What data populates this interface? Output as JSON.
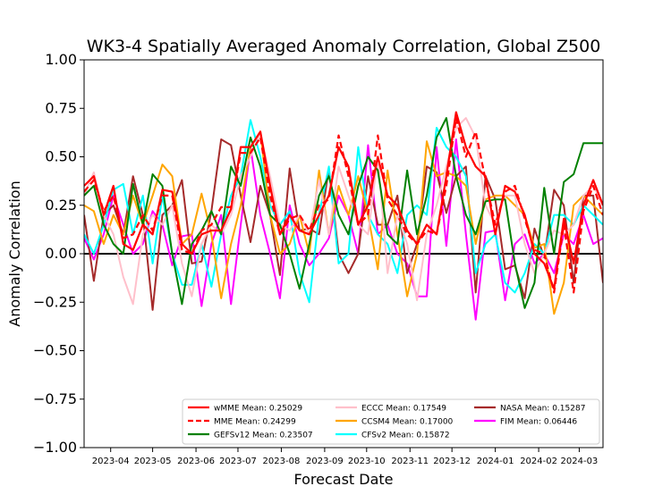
{
  "chart_data": {
    "type": "line",
    "title": "WK3-4 Spatially Averaged Anomaly Correlation, Global Z500",
    "xlabel": "Forecast Date",
    "ylabel": "Anomaly Correlation",
    "ylim": [
      -1.0,
      1.0
    ],
    "xlim": [
      "2023-03-13",
      "2024-03-18"
    ],
    "grid": false,
    "legend_position": "lower-center",
    "zero_line": 0.0,
    "y_ticks": [
      -1.0,
      -0.75,
      -0.5,
      -0.25,
      0.0,
      0.25,
      0.5,
      0.75,
      1.0
    ],
    "y_tick_labels": [
      "−1.00",
      "−0.75",
      "−0.50",
      "−0.25",
      "0.00",
      "0.25",
      "0.50",
      "0.75",
      "1.00"
    ],
    "x_ticks": [
      "2023-04-01",
      "2023-05-01",
      "2023-06-01",
      "2023-07-01",
      "2023-08-01",
      "2023-09-01",
      "2023-10-01",
      "2023-11-01",
      "2023-12-01",
      "2024-01-01",
      "2024-02-01",
      "2024-03-01"
    ],
    "x_tick_labels": [
      "2023-04",
      "2023-05",
      "2023-06",
      "2023-07",
      "2023-08",
      "2023-09",
      "2023-10",
      "2023-11",
      "2023-12",
      "2024-01",
      "2024-02",
      "2024-03"
    ],
    "x": [
      "2023-03-13",
      "2023-03-20",
      "2023-03-27",
      "2023-04-03",
      "2023-04-10",
      "2023-04-17",
      "2023-04-24",
      "2023-05-01",
      "2023-05-08",
      "2023-05-15",
      "2023-05-22",
      "2023-05-29",
      "2023-06-05",
      "2023-06-12",
      "2023-06-19",
      "2023-06-26",
      "2023-07-03",
      "2023-07-10",
      "2023-07-17",
      "2023-07-24",
      "2023-07-31",
      "2023-08-07",
      "2023-08-14",
      "2023-08-21",
      "2023-08-28",
      "2023-09-04",
      "2023-09-11",
      "2023-09-18",
      "2023-09-25",
      "2023-10-02",
      "2023-10-09",
      "2023-10-16",
      "2023-10-23",
      "2023-10-30",
      "2023-11-06",
      "2023-11-13",
      "2023-11-20",
      "2023-11-27",
      "2023-12-04",
      "2023-12-11",
      "2023-12-18",
      "2023-12-25",
      "2024-01-01",
      "2024-01-08",
      "2024-01-15",
      "2024-01-22",
      "2024-01-29",
      "2024-02-05",
      "2024-02-12",
      "2024-02-19",
      "2024-02-26",
      "2024-03-04",
      "2024-03-11",
      "2024-03-18"
    ],
    "series": [
      {
        "name": "wMME Mean: 0.25029",
        "color": "#ff0000",
        "dash": "solid",
        "width": 2.2,
        "values": [
          0.35,
          0.4,
          0.2,
          0.35,
          0.05,
          0.02,
          0.15,
          0.1,
          0.33,
          0.32,
          0.05,
          0.0,
          0.1,
          0.12,
          0.12,
          0.23,
          0.55,
          0.55,
          0.63,
          0.35,
          0.1,
          0.2,
          0.12,
          0.1,
          0.2,
          0.3,
          0.55,
          0.45,
          0.15,
          0.25,
          0.5,
          0.3,
          0.25,
          0.12,
          0.05,
          0.15,
          0.1,
          0.4,
          0.73,
          0.55,
          0.45,
          0.4,
          0.1,
          0.35,
          0.32,
          0.2,
          0.0,
          -0.05,
          -0.18,
          0.18,
          -0.05,
          0.25,
          0.38,
          0.25
        ]
      },
      {
        "name": "MME Mean: 0.24299",
        "color": "#ff0000",
        "dash": "dashed",
        "width": 2.2,
        "values": [
          0.32,
          0.38,
          0.22,
          0.3,
          0.08,
          0.1,
          0.2,
          0.12,
          0.3,
          0.3,
          0.02,
          0.0,
          0.12,
          0.15,
          0.24,
          0.24,
          0.52,
          0.52,
          0.6,
          0.3,
          0.1,
          0.18,
          0.2,
          0.12,
          0.25,
          0.28,
          0.61,
          0.4,
          0.15,
          0.2,
          0.61,
          0.28,
          0.2,
          0.1,
          0.05,
          0.12,
          0.1,
          0.35,
          0.7,
          0.5,
          0.63,
          0.38,
          0.15,
          0.32,
          0.35,
          0.18,
          0.02,
          0.0,
          -0.2,
          0.15,
          -0.2,
          0.22,
          0.35,
          0.2
        ]
      },
      {
        "name": "ECCC Mean: 0.17549",
        "color": "#ffc0cb",
        "dash": "solid",
        "width": 2.0,
        "values": [
          0.3,
          0.42,
          0.2,
          0.1,
          -0.12,
          -0.26,
          0.1,
          0.2,
          0.15,
          0.25,
          -0.05,
          -0.22,
          0.05,
          0.15,
          0.1,
          0.2,
          0.4,
          0.5,
          0.62,
          0.4,
          0.15,
          0.12,
          0.2,
          0.1,
          0.38,
          0.1,
          0.45,
          0.3,
          0.15,
          0.1,
          0.5,
          -0.1,
          0.2,
          0.05,
          -0.24,
          0.1,
          0.25,
          0.45,
          0.65,
          0.7,
          0.6,
          0.25,
          0.15,
          0.3,
          0.3,
          0.05,
          -0.1,
          0.0,
          0.12,
          0.1,
          0.15,
          0.3,
          0.35,
          0.25
        ]
      },
      {
        "name": "CCSM4 Mean: 0.17000",
        "color": "#ffa500",
        "dash": "solid",
        "width": 2.0,
        "values": [
          0.25,
          0.22,
          0.05,
          0.2,
          0.1,
          0.3,
          0.15,
          0.3,
          0.46,
          0.4,
          0.05,
          0.1,
          0.31,
          0.1,
          -0.23,
          0.05,
          0.25,
          0.55,
          0.63,
          0.2,
          0.0,
          0.05,
          0.2,
          0.0,
          0.43,
          0.1,
          0.35,
          0.2,
          0.4,
          0.2,
          -0.08,
          0.43,
          0.1,
          -0.22,
          0.0,
          0.58,
          0.4,
          0.42,
          0.4,
          0.35,
          0.05,
          0.28,
          0.3,
          0.3,
          0.25,
          0.2,
          0.03,
          0.05,
          -0.31,
          -0.15,
          0.25,
          0.3,
          0.25,
          0.2
        ]
      },
      {
        "name": "NASA Mean: 0.15287",
        "color": "#a52a2a",
        "dash": "solid",
        "width": 2.0,
        "values": [
          0.2,
          -0.14,
          0.2,
          0.25,
          0.1,
          0.4,
          0.2,
          -0.29,
          0.2,
          0.25,
          0.38,
          -0.05,
          -0.04,
          0.22,
          0.59,
          0.56,
          0.3,
          0.06,
          0.35,
          0.2,
          -0.11,
          0.44,
          0.12,
          0.13,
          0.1,
          0.44,
          0.0,
          -0.1,
          0.0,
          0.4,
          0.15,
          0.15,
          0.3,
          -0.1,
          0.05,
          0.45,
          0.42,
          0.21,
          0.4,
          0.45,
          -0.2,
          0.4,
          0.28,
          -0.08,
          -0.06,
          -0.23,
          0.13,
          -0.02,
          0.33,
          0.25,
          -0.15,
          0.3,
          0.3,
          -0.15
        ]
      },
      {
        "name": "GEFSv12 Mean: 0.23507",
        "color": "#008000",
        "dash": "solid",
        "width": 2.0,
        "values": [
          0.3,
          0.35,
          0.15,
          0.05,
          0.0,
          0.36,
          0.15,
          0.41,
          0.35,
          0.0,
          -0.26,
          0.05,
          0.12,
          0.22,
          0.1,
          0.45,
          0.35,
          0.6,
          0.45,
          0.2,
          0.15,
          0.0,
          -0.18,
          0.05,
          0.3,
          0.4,
          0.2,
          0.1,
          0.35,
          0.5,
          0.43,
          0.1,
          0.05,
          0.43,
          0.1,
          0.3,
          0.6,
          0.7,
          0.4,
          0.2,
          0.1,
          0.27,
          0.28,
          0.28,
          -0.05,
          -0.28,
          -0.15,
          0.34,
          0.0,
          0.37,
          0.41,
          0.57,
          0.57,
          0.57
        ]
      },
      {
        "name": "CFSv2 Mean: 0.15872",
        "color": "#00ffff",
        "dash": "solid",
        "width": 2.0,
        "values": [
          0.1,
          0.0,
          0.15,
          0.33,
          0.36,
          0.1,
          0.3,
          -0.05,
          0.3,
          0.0,
          -0.16,
          -0.16,
          0.05,
          -0.17,
          0.1,
          0.3,
          0.4,
          0.69,
          0.5,
          0.25,
          0.15,
          0.22,
          -0.1,
          -0.25,
          0.2,
          0.45,
          -0.05,
          0.0,
          0.55,
          0.2,
          0.1,
          0.05,
          -0.1,
          0.2,
          0.25,
          0.2,
          0.65,
          0.55,
          0.5,
          0.4,
          -0.1,
          0.05,
          0.1,
          -0.15,
          -0.2,
          -0.1,
          0.05,
          0.0,
          0.2,
          0.2,
          0.15,
          0.25,
          0.2,
          0.15
        ]
      },
      {
        "name": "FIM Mean: 0.06446",
        "color": "#ff00ff",
        "dash": "solid",
        "width": 2.0,
        "values": [
          0.08,
          -0.03,
          0.1,
          0.3,
          0.15,
          0.0,
          0.05,
          0.22,
          0.15,
          -0.06,
          0.09,
          0.1,
          -0.27,
          0.05,
          0.2,
          -0.26,
          0.15,
          0.55,
          0.2,
          0.0,
          -0.23,
          0.25,
          0.05,
          -0.06,
          0.0,
          0.08,
          0.3,
          0.2,
          0.0,
          0.56,
          0.1,
          0.15,
          0.0,
          -0.05,
          -0.22,
          -0.22,
          0.55,
          0.04,
          0.59,
          0.1,
          -0.34,
          0.11,
          0.12,
          -0.24,
          0.05,
          0.1,
          -0.05,
          0.0,
          -0.1,
          0.1,
          0.05,
          0.2,
          0.05,
          0.08
        ]
      }
    ],
    "legend_order": [
      "wMME Mean: 0.25029",
      "MME Mean: 0.24299",
      "GEFSv12 Mean: 0.23507",
      "ECCC Mean: 0.17549",
      "CCSM4 Mean: 0.17000",
      "CFSv2 Mean: 0.15872",
      "NASA Mean: 0.15287",
      "FIM Mean: 0.06446"
    ]
  }
}
